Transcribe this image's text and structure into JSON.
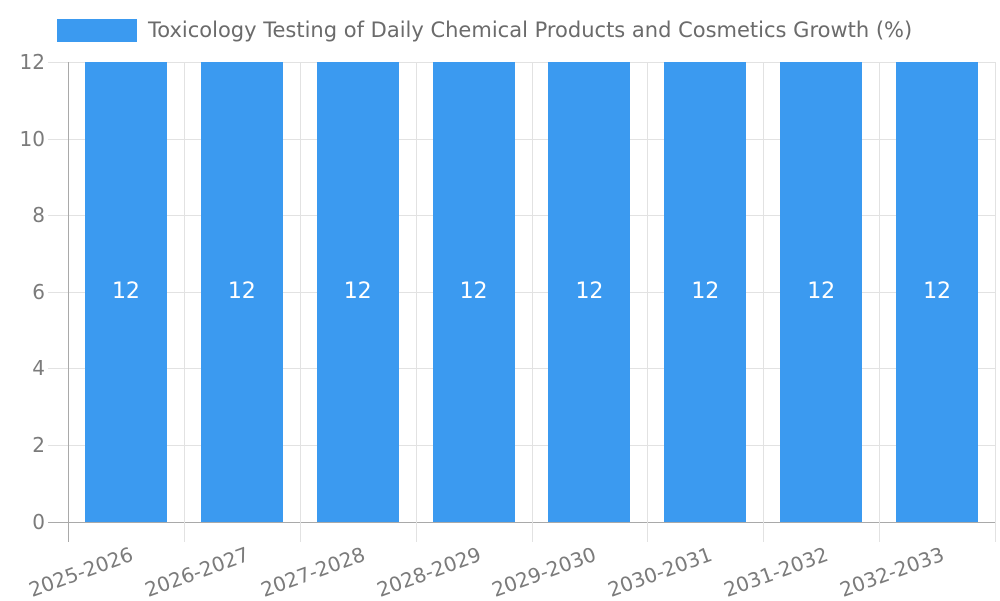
{
  "legend": {
    "label": "Toxicology Testing of Daily Chemical Products and Cosmetics Growth (%)",
    "swatch_color": "#3b9af0"
  },
  "chart_data": {
    "type": "bar",
    "title": "Toxicology Testing of Daily Chemical Products and Cosmetics Growth (%)",
    "categories": [
      "2025-2026",
      "2026-2027",
      "2027-2028",
      "2028-2029",
      "2029-2030",
      "2030-2031",
      "2031-2032",
      "2032-2033"
    ],
    "values": [
      12,
      12,
      12,
      12,
      12,
      12,
      12,
      12
    ],
    "bar_labels": [
      "12",
      "12",
      "12",
      "12",
      "12",
      "12",
      "12",
      "12"
    ],
    "ytick_labels": [
      "0",
      "2",
      "4",
      "6",
      "8",
      "10",
      "12"
    ],
    "yticks": [
      0,
      2,
      4,
      6,
      8,
      10,
      12
    ],
    "ylim": [
      0,
      12
    ],
    "xlabel": "",
    "ylabel": "",
    "grid": true,
    "legend_position": "top-left",
    "xlabel_rotation_deg": -20,
    "colors": {
      "bar": "#3b9af0",
      "bar_label": "#ffffff",
      "grid_line": "#e2e2e2",
      "axis_line": "#a9a9a9",
      "axis_text": "#7b7b7b",
      "title_text": "#6b6b6b"
    }
  }
}
